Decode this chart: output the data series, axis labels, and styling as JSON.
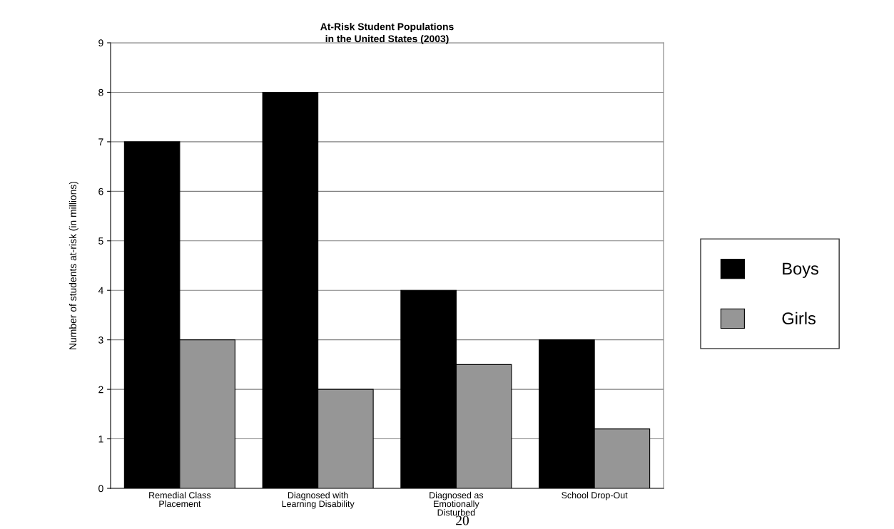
{
  "chart_data": {
    "type": "bar",
    "title": "At-Risk Student Populations\nin the United States (2003)",
    "ylabel": "Number of students at-risk (in millions)",
    "categories": [
      "Remedial Class\nPlacement",
      "Diagnosed with\nLearning Disability",
      "Diagnosed as\nEmotionally\nDisturbed",
      "School Drop-Out"
    ],
    "series": [
      {
        "name": "Boys",
        "color": "#000000",
        "values": [
          7,
          8,
          4,
          3
        ]
      },
      {
        "name": "Girls",
        "color": "#969696",
        "values": [
          3,
          2,
          2.5,
          1.2
        ]
      }
    ],
    "ylim": [
      0,
      9
    ],
    "yticks": [
      0,
      1,
      2,
      3,
      4,
      5,
      6,
      7,
      8,
      9
    ],
    "grid": "y",
    "legend": "right",
    "annotations": [
      "20"
    ]
  }
}
